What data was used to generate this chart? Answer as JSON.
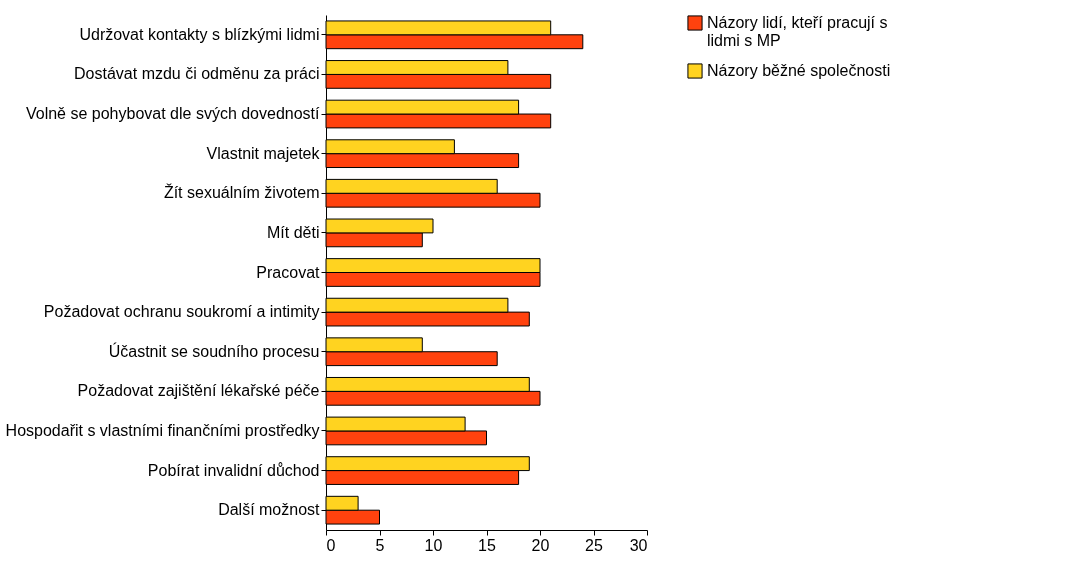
{
  "chart_data": {
    "type": "bar",
    "orientation": "horizontal",
    "categories": [
      "Udržovat kontakty s blízkými lidmi",
      "Dostávat mzdu či odměnu za práci",
      "Volně se pohybovat dle svých dovedností",
      "Vlastnit majetek",
      "Žít sexuálním životem",
      "Mít děti",
      "Pracovat",
      "Požadovat ochranu soukromí a intimity",
      "Účastnit se soudního procesu",
      "Požadovat zajištění lékařské péče",
      "Hospodařit s vlastními finančními prostředky",
      "Pobírat invalidní důchod",
      "Další možnost"
    ],
    "series": [
      {
        "name": "Názory lidí, kteří pracují s lidmi s MP",
        "color": "#ff420e",
        "values": [
          24,
          21,
          21,
          18,
          20,
          9,
          20,
          19,
          16,
          20,
          15,
          18,
          5
        ]
      },
      {
        "name": "Názory běžné společnosti",
        "color": "#ffd320",
        "values": [
          21,
          17,
          18,
          12,
          16,
          10,
          20,
          17,
          9,
          19,
          13,
          19,
          3
        ]
      }
    ],
    "xlim": [
      0,
      30
    ],
    "xticks": [
      0,
      5,
      10,
      15,
      20,
      25,
      30
    ],
    "grid": false,
    "legend": "right"
  }
}
